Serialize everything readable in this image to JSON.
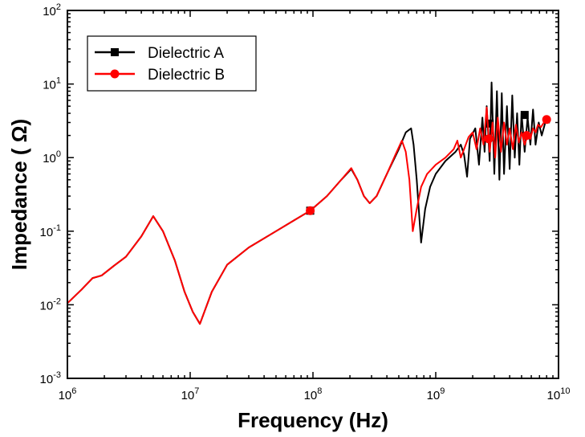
{
  "chart_data": {
    "type": "line",
    "xlabel": "Frequency (Hz)",
    "ylabel": "Impedance ( Ω)",
    "x_scale": "log",
    "y_scale": "log",
    "xlim": [
      1000000,
      10000000000
    ],
    "ylim": [
      0.001,
      100
    ],
    "grid": false,
    "legend_position": "top-left",
    "x_ticks": [
      {
        "base": "10",
        "exp": "6",
        "value": 1000000
      },
      {
        "base": "10",
        "exp": "7",
        "value": 10000000
      },
      {
        "base": "10",
        "exp": "8",
        "value": 100000000
      },
      {
        "base": "10",
        "exp": "9",
        "value": 1000000000
      },
      {
        "base": "10",
        "exp": "10",
        "value": 10000000000
      }
    ],
    "y_ticks": [
      {
        "base": "10",
        "exp": "-3",
        "value": 0.001
      },
      {
        "base": "10",
        "exp": "-2",
        "value": 0.01
      },
      {
        "base": "10",
        "exp": "-1",
        "value": 0.1
      },
      {
        "base": "10",
        "exp": "0",
        "value": 1
      },
      {
        "base": "10",
        "exp": "1",
        "value": 10
      },
      {
        "base": "10",
        "exp": "2",
        "value": 100
      }
    ],
    "series": [
      {
        "name": "Dielectric A",
        "color": "#000000",
        "marker": "square",
        "x": [
          1000000.0,
          1300000.0,
          1600000.0,
          1900000.0,
          2400000.0,
          3000000.0,
          4000000.0,
          5000000.0,
          6000000.0,
          7500000.0,
          9000000.0,
          10500000.0,
          12000000.0,
          15000000.0,
          20000000.0,
          30000000.0,
          50000000.0,
          70000000.0,
          95000000.0,
          130000000.0,
          170000000.0,
          205000000.0,
          230000000.0,
          260000000.0,
          290000000.0,
          330000000.0,
          400000000.0,
          500000000.0,
          570000000.0,
          630000000.0,
          660000000.0,
          700000000.0,
          760000000.0,
          820000000.0,
          900000000.0,
          1000000000.0,
          1200000000.0,
          1450000000.0,
          1600000000.0,
          1700000000.0,
          1800000000.0,
          1900000000.0,
          2100000000.0,
          2250000000.0,
          2400000000.0,
          2500000000.0,
          2600000000.0,
          2750000000.0,
          2850000000.0,
          3000000000.0,
          3150000000.0,
          3300000000.0,
          3450000000.0,
          3600000000.0,
          3800000000.0,
          4000000000.0,
          4200000000.0,
          4400000000.0,
          4600000000.0,
          4800000000.0,
          5000000000.0,
          5300000000.0,
          5600000000.0,
          5900000000.0,
          6200000000.0,
          6500000000.0,
          6900000000.0,
          7300000000.0,
          7800000000.0,
          8500000000.0
        ],
        "values": [
          0.0105,
          0.016,
          0.023,
          0.025,
          0.034,
          0.045,
          0.085,
          0.16,
          0.1,
          0.04,
          0.015,
          0.008,
          0.0055,
          0.015,
          0.035,
          0.06,
          0.1,
          0.14,
          0.19,
          0.3,
          0.5,
          0.7,
          0.5,
          0.3,
          0.24,
          0.3,
          0.6,
          1.3,
          2.2,
          2.5,
          1.5,
          0.5,
          0.07,
          0.2,
          0.4,
          0.6,
          0.9,
          1.2,
          1.5,
          1.1,
          0.55,
          1.8,
          2.5,
          0.8,
          3.5,
          1.2,
          5.0,
          0.9,
          10.5,
          0.6,
          8.0,
          0.5,
          7.5,
          0.6,
          5.0,
          0.7,
          7.0,
          1.0,
          4.0,
          0.8,
          4.0,
          1.2,
          3.5,
          1.5,
          4.5,
          1.5,
          3.0,
          2.0,
          3.0,
          3.0
        ],
        "marker_points": [
          [
            95000000.0,
            0.19
          ],
          [
            2750000000.0,
            2.9
          ],
          [
            5300000000.0,
            3.8
          ]
        ]
      },
      {
        "name": "Dielectric B",
        "color": "#ff0000",
        "marker": "circle",
        "x": [
          1000000.0,
          1300000.0,
          1600000.0,
          1900000.0,
          2400000.0,
          3000000.0,
          4000000.0,
          5000000.0,
          6000000.0,
          7500000.0,
          9000000.0,
          10500000.0,
          12000000.0,
          15000000.0,
          20000000.0,
          30000000.0,
          50000000.0,
          70000000.0,
          95000000.0,
          130000000.0,
          170000000.0,
          205000000.0,
          230000000.0,
          260000000.0,
          290000000.0,
          330000000.0,
          400000000.0,
          470000000.0,
          530000000.0,
          570000000.0,
          610000000.0,
          650000000.0,
          700000000.0,
          760000000.0,
          850000000.0,
          1000000000.0,
          1200000000.0,
          1400000000.0,
          1500000000.0,
          1600000000.0,
          1700000000.0,
          1850000000.0,
          2000000000.0,
          2150000000.0,
          2300000000.0,
          2450000000.0,
          2600000000.0,
          2750000000.0,
          2900000000.0,
          3050000000.0,
          3200000000.0,
          3400000000.0,
          3600000000.0,
          3800000000.0,
          4000000000.0,
          4250000000.0,
          4500000000.0,
          4750000000.0,
          5000000000.0,
          5300000000.0,
          5600000000.0,
          5900000000.0,
          6200000000.0,
          6500000000.0,
          6800000000.0,
          7200000000.0,
          7600000000.0,
          8000000000.0
        ],
        "values": [
          0.0105,
          0.016,
          0.023,
          0.025,
          0.034,
          0.045,
          0.085,
          0.16,
          0.1,
          0.04,
          0.015,
          0.008,
          0.0055,
          0.015,
          0.035,
          0.06,
          0.1,
          0.14,
          0.19,
          0.3,
          0.5,
          0.72,
          0.5,
          0.3,
          0.24,
          0.3,
          0.6,
          1.1,
          1.7,
          1.2,
          0.5,
          0.1,
          0.2,
          0.4,
          0.6,
          0.8,
          1.0,
          1.3,
          1.7,
          1.0,
          1.3,
          1.9,
          2.2,
          1.3,
          2.5,
          1.5,
          4.8,
          1.2,
          3.0,
          1.0,
          3.5,
          1.2,
          3.0,
          1.5,
          2.5,
          1.3,
          2.8,
          1.6,
          2.2,
          1.5,
          2.0,
          1.8,
          2.5,
          2.2,
          2.8,
          2.6,
          3.0,
          3.2
        ],
        "marker_points": [
          [
            95000000.0,
            0.19
          ],
          [
            2700000000.0,
            1.8
          ],
          [
            5500000000.0,
            2.0
          ],
          [
            8000000000.0,
            3.3
          ]
        ]
      }
    ]
  }
}
